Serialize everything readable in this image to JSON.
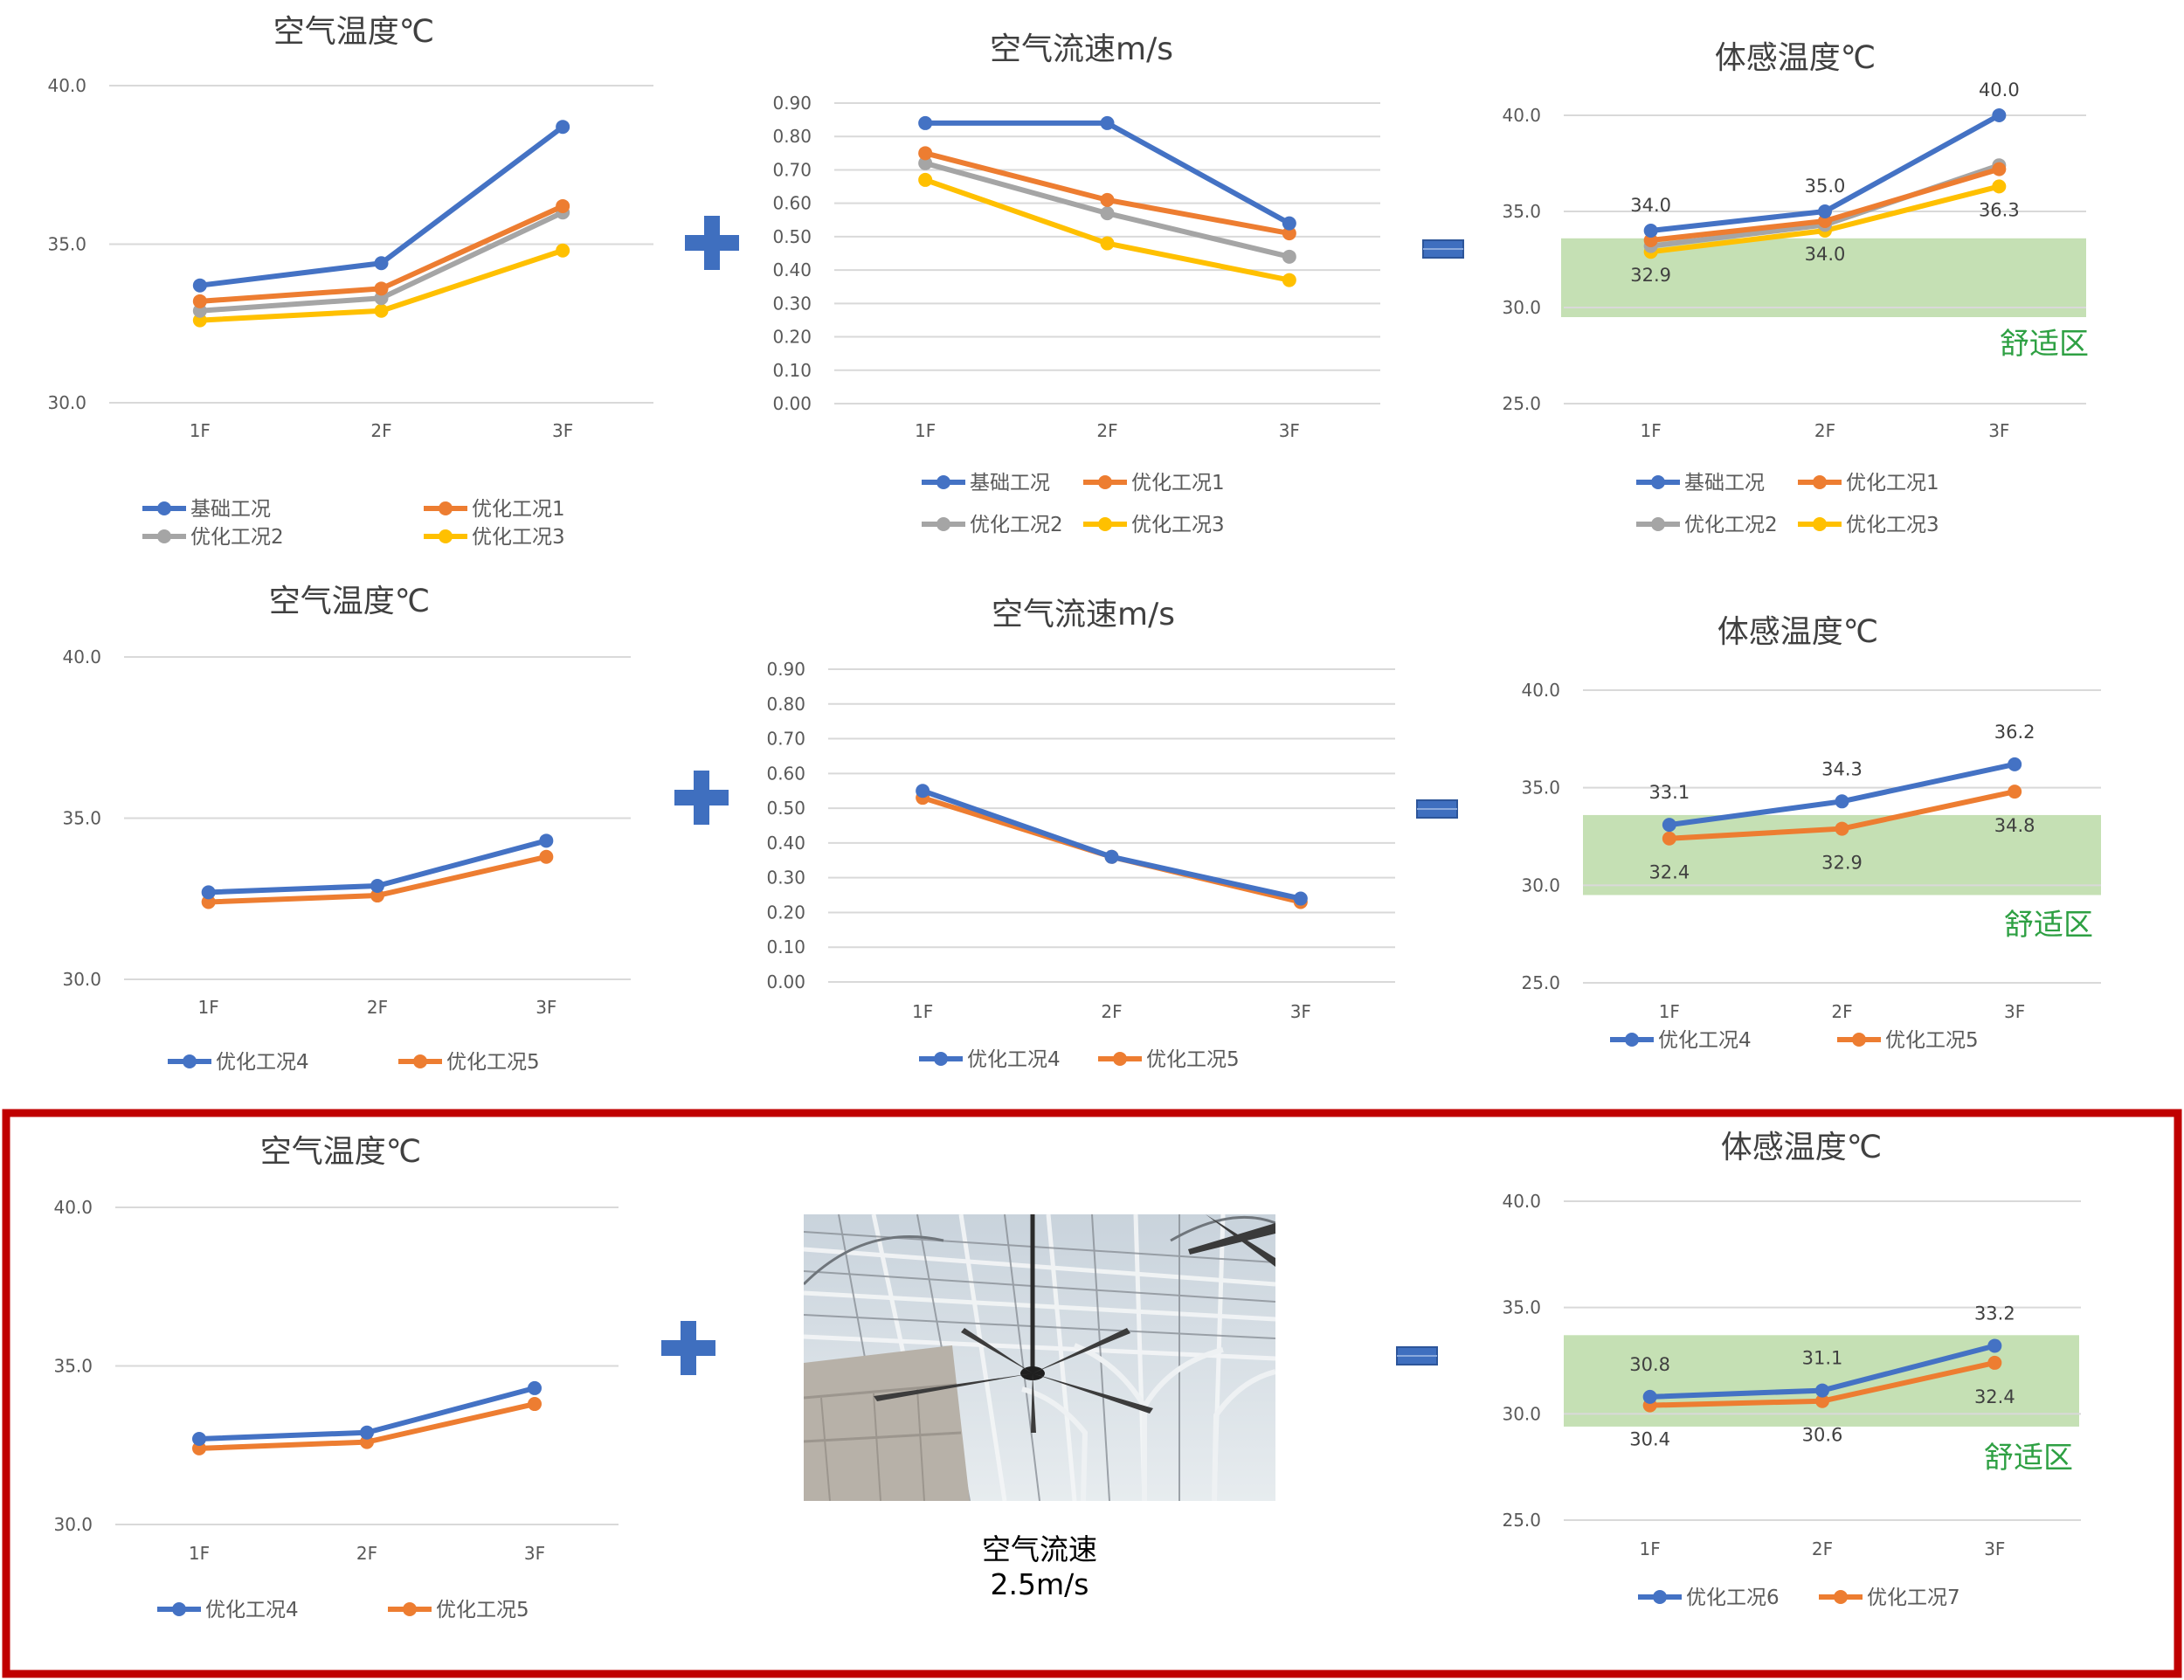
{
  "colors": {
    "series": [
      "#4472c4",
      "#ed7d31",
      "#a5a5a5",
      "#ffc000"
    ],
    "comfort_zone": "#c5e0b4",
    "comfort_text": "#2ea043",
    "highlight_border": "#c00000",
    "operator": "#3f6fbf"
  },
  "operators": {
    "plus": "+",
    "equals": "="
  },
  "comfort_zone_label": "舒适区",
  "photo": {
    "caption_line1": "空气流速",
    "caption_line2": "2.5m/s",
    "icon": "ceiling-fan-photo"
  },
  "chart_data": [
    {
      "type": "line",
      "title": "空气温度℃",
      "categories": [
        "1F",
        "2F",
        "3F"
      ],
      "ylim": [
        30,
        40
      ],
      "yticks": [
        "30.0",
        "35.0",
        "40.0"
      ],
      "grid": true,
      "legend_placement": "bottom",
      "series": [
        {
          "name": "基础工况",
          "values": [
            33.7,
            34.4,
            38.7
          ]
        },
        {
          "name": "优化工况1",
          "values": [
            33.2,
            33.6,
            36.2
          ]
        },
        {
          "name": "优化工况2",
          "values": [
            32.9,
            33.3,
            36.0
          ]
        },
        {
          "name": "优化工况3",
          "values": [
            32.6,
            32.9,
            34.8
          ]
        }
      ]
    },
    {
      "type": "line",
      "title": "空气流速m/s",
      "categories": [
        "1F",
        "2F",
        "3F"
      ],
      "ylim": [
        0,
        0.9
      ],
      "yticks": [
        "0.00",
        "0.10",
        "0.20",
        "0.30",
        "0.40",
        "0.50",
        "0.60",
        "0.70",
        "0.80",
        "0.90"
      ],
      "grid": true,
      "legend_placement": "bottom",
      "series": [
        {
          "name": "基础工况",
          "values": [
            0.84,
            0.84,
            0.54
          ]
        },
        {
          "name": "优化工况1",
          "values": [
            0.75,
            0.61,
            0.51
          ]
        },
        {
          "name": "优化工况2",
          "values": [
            0.72,
            0.57,
            0.44
          ]
        },
        {
          "name": "优化工况3",
          "values": [
            0.67,
            0.48,
            0.37
          ]
        }
      ]
    },
    {
      "type": "line",
      "title": "体感温度℃",
      "categories": [
        "1F",
        "2F",
        "3F"
      ],
      "ylim": [
        25,
        40
      ],
      "yticks": [
        "25.0",
        "30.0",
        "35.0",
        "40.0"
      ],
      "grid": true,
      "legend_placement": "bottom",
      "comfort_zone": [
        29.5,
        33.6
      ],
      "series": [
        {
          "name": "基础工况",
          "values": [
            34.0,
            35.0,
            40.0
          ],
          "labels": [
            "34.0",
            "35.0",
            "40.0"
          ]
        },
        {
          "name": "优化工况1",
          "values": [
            33.5,
            34.5,
            37.2
          ]
        },
        {
          "name": "优化工况2",
          "values": [
            33.2,
            34.3,
            37.4
          ]
        },
        {
          "name": "优化工况3",
          "values": [
            32.9,
            34.0,
            36.3
          ],
          "labels": [
            "32.9",
            "34.0",
            "36.3"
          ]
        }
      ]
    },
    {
      "type": "line",
      "title": "空气温度℃",
      "categories": [
        "1F",
        "2F",
        "3F"
      ],
      "ylim": [
        30,
        40
      ],
      "yticks": [
        "30.0",
        "35.0",
        "40.0"
      ],
      "grid": true,
      "legend_placement": "bottom",
      "series": [
        {
          "name": "优化工况4",
          "values": [
            32.7,
            32.9,
            34.3
          ]
        },
        {
          "name": "优化工况5",
          "values": [
            32.4,
            32.6,
            33.8
          ]
        }
      ]
    },
    {
      "type": "line",
      "title": "空气流速m/s",
      "categories": [
        "1F",
        "2F",
        "3F"
      ],
      "ylim": [
        0,
        0.9
      ],
      "yticks": [
        "0.00",
        "0.10",
        "0.20",
        "0.30",
        "0.40",
        "0.50",
        "0.60",
        "0.70",
        "0.80",
        "0.90"
      ],
      "grid": true,
      "legend_placement": "bottom",
      "series": [
        {
          "name": "优化工况4",
          "values": [
            0.55,
            0.36,
            0.24
          ]
        },
        {
          "name": "优化工况5",
          "values": [
            0.53,
            0.36,
            0.23
          ]
        }
      ]
    },
    {
      "type": "line",
      "title": "体感温度℃",
      "categories": [
        "1F",
        "2F",
        "3F"
      ],
      "ylim": [
        25,
        40
      ],
      "yticks": [
        "25.0",
        "30.0",
        "35.0",
        "40.0"
      ],
      "grid": true,
      "legend_placement": "bottom",
      "comfort_zone": [
        29.5,
        33.6
      ],
      "series": [
        {
          "name": "优化工况4",
          "values": [
            33.1,
            34.3,
            36.2
          ],
          "labels": [
            "33.1",
            "34.3",
            "36.2"
          ]
        },
        {
          "name": "优化工况5",
          "values": [
            32.4,
            32.9,
            34.8
          ],
          "labels": [
            "32.4",
            "32.9",
            "34.8"
          ]
        }
      ]
    },
    {
      "type": "line",
      "title": "空气温度℃",
      "categories": [
        "1F",
        "2F",
        "3F"
      ],
      "ylim": [
        30,
        40
      ],
      "yticks": [
        "30.0",
        "35.0",
        "40.0"
      ],
      "grid": true,
      "legend_placement": "bottom",
      "series": [
        {
          "name": "优化工况4",
          "values": [
            32.7,
            32.9,
            34.3
          ]
        },
        {
          "name": "优化工况5",
          "values": [
            32.4,
            32.6,
            33.8
          ]
        }
      ]
    },
    {
      "type": "line",
      "title": "体感温度℃",
      "categories": [
        "1F",
        "2F",
        "3F"
      ],
      "ylim": [
        25,
        40
      ],
      "yticks": [
        "25.0",
        "30.0",
        "35.0",
        "40.0"
      ],
      "grid": true,
      "legend_placement": "bottom",
      "comfort_zone": [
        29.4,
        33.7
      ],
      "series": [
        {
          "name": "优化工况6",
          "values": [
            30.8,
            31.1,
            33.2
          ],
          "labels": [
            "30.8",
            "31.1",
            "33.2"
          ]
        },
        {
          "name": "优化工况7",
          "values": [
            30.4,
            30.6,
            32.4
          ],
          "labels": [
            "30.4",
            "30.6",
            "32.4"
          ]
        }
      ]
    }
  ]
}
